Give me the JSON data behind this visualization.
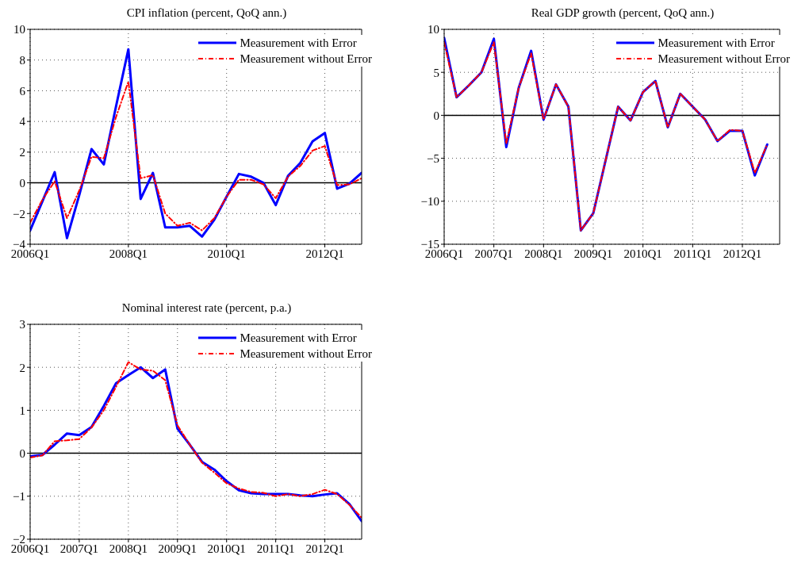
{
  "chart_data": [
    {
      "type": "line",
      "title": "CPI inflation (percent, QoQ ann.)",
      "categories": [
        "2006Q1",
        null,
        null,
        null,
        null,
        null,
        null,
        null,
        "2008Q1",
        null,
        null,
        null,
        null,
        null,
        null,
        null,
        "2010Q1",
        null,
        null,
        null,
        null,
        null,
        null,
        null,
        "2012Q1",
        null,
        null,
        null
      ],
      "ylim": [
        -4,
        10
      ],
      "yticks": [
        -4,
        -2,
        0,
        2,
        4,
        6,
        8,
        10
      ],
      "grid": true,
      "legend": "top right",
      "marker": "none",
      "ref_lines": [
        {
          "axis": "y",
          "value": 0,
          "color": "#000000"
        }
      ],
      "series": [
        {
          "name": "Measurement with Error",
          "color": "#0000ff",
          "line_style": "solid",
          "values": [
            -3.1,
            -1.2,
            0.7,
            -3.6,
            -0.8,
            2.2,
            1.2,
            5.0,
            8.7,
            -1.05,
            0.65,
            -2.9,
            -2.9,
            -2.8,
            -3.5,
            -2.4,
            -0.9,
            0.58,
            0.4,
            0,
            -1.45,
            0.45,
            1.3,
            2.7,
            3.25,
            -0.38,
            -0.05,
            0.65
          ]
        },
        {
          "name": "Measurement without Error",
          "color": "#ff0000",
          "line_style": "dashed",
          "values": [
            -2.6,
            -1.1,
            0.1,
            -2.3,
            -0.5,
            1.7,
            1.6,
            4.3,
            6.6,
            0.3,
            0.5,
            -2.0,
            -2.8,
            -2.6,
            -3.1,
            -2.3,
            -0.9,
            0.2,
            0.2,
            -0.1,
            -1.0,
            0.4,
            1.1,
            2.1,
            2.4,
            -0.15,
            -0.1,
            0.3
          ]
        }
      ]
    },
    {
      "type": "line",
      "title": "Real GDP growth (percent, QoQ ann.)",
      "categories": [
        "2006Q1",
        null,
        null,
        null,
        "2007Q1",
        null,
        null,
        null,
        "2008Q1",
        null,
        null,
        null,
        "2009Q1",
        null,
        null,
        null,
        "2010Q1",
        null,
        null,
        null,
        "2011Q1",
        null,
        null,
        null,
        "2012Q1",
        null,
        null,
        null
      ],
      "ylim": [
        -15,
        10
      ],
      "yticks": [
        -15,
        -10,
        -5,
        0,
        5,
        10
      ],
      "grid": true,
      "legend": "top right",
      "marker": "none",
      "ref_lines": [
        {
          "axis": "y",
          "value": 0,
          "color": "#000000"
        }
      ],
      "series": [
        {
          "name": "Measurement with Error",
          "color": "#0000ff",
          "line_style": "solid",
          "values": [
            9.0,
            2.1,
            3.5,
            5.0,
            8.9,
            -3.7,
            3.2,
            7.5,
            -0.5,
            3.6,
            1.0,
            -13.4,
            -11.4,
            -5.2,
            1.0,
            -0.6,
            2.7,
            4.0,
            -1.4,
            2.5,
            1.0,
            -0.5,
            -3.0,
            -1.8,
            -1.8,
            -7.0,
            -3.4,
            null
          ]
        },
        {
          "name": "Measurement without Error",
          "color": "#ff0000",
          "line_style": "dashed",
          "values": [
            8.5,
            2.1,
            3.5,
            5.0,
            8.5,
            -3.3,
            3.2,
            7.2,
            -0.5,
            3.6,
            1.0,
            -13.4,
            -11.4,
            -5.2,
            1.0,
            -0.6,
            2.7,
            4.0,
            -1.4,
            2.5,
            1.0,
            -0.5,
            -3.0,
            -1.7,
            -1.8,
            -6.7,
            -3.4,
            null
          ]
        }
      ]
    },
    {
      "type": "line",
      "title": "Nominal interest rate (percent, p.a.)",
      "categories": [
        "2006Q1",
        null,
        null,
        null,
        "2007Q1",
        null,
        null,
        null,
        "2008Q1",
        null,
        null,
        null,
        "2009Q1",
        null,
        null,
        null,
        "2010Q1",
        null,
        null,
        null,
        "2011Q1",
        null,
        null,
        null,
        "2012Q1",
        null,
        null,
        null
      ],
      "ylim": [
        -2,
        3
      ],
      "yticks": [
        -2,
        -1,
        0,
        1,
        2,
        3
      ],
      "grid": true,
      "legend": "top right",
      "marker": "none",
      "ref_lines": [
        {
          "axis": "y",
          "value": 0,
          "color": "#000000"
        }
      ],
      "series": [
        {
          "name": "Measurement with Error",
          "color": "#0000ff",
          "line_style": "solid",
          "values": [
            -0.07,
            -0.04,
            0.2,
            0.46,
            0.42,
            0.61,
            1.1,
            1.63,
            1.82,
            2.0,
            1.75,
            1.95,
            0.57,
            0.2,
            -0.2,
            -0.38,
            -0.65,
            -0.86,
            -0.93,
            -0.95,
            -0.95,
            -0.95,
            -0.98,
            -1.0,
            -0.96,
            -0.93,
            -1.18,
            -1.58
          ]
        },
        {
          "name": "Measurement without Error",
          "color": "#ff0000",
          "line_style": "dashed",
          "values": [
            -0.1,
            -0.05,
            0.28,
            0.3,
            0.33,
            0.6,
            1.0,
            1.55,
            2.12,
            1.95,
            1.92,
            1.7,
            0.65,
            0.2,
            -0.22,
            -0.45,
            -0.7,
            -0.82,
            -0.9,
            -0.92,
            -1.0,
            -0.95,
            -1.0,
            -0.95,
            -0.85,
            -0.95,
            -1.2,
            -1.5
          ]
        }
      ]
    }
  ]
}
